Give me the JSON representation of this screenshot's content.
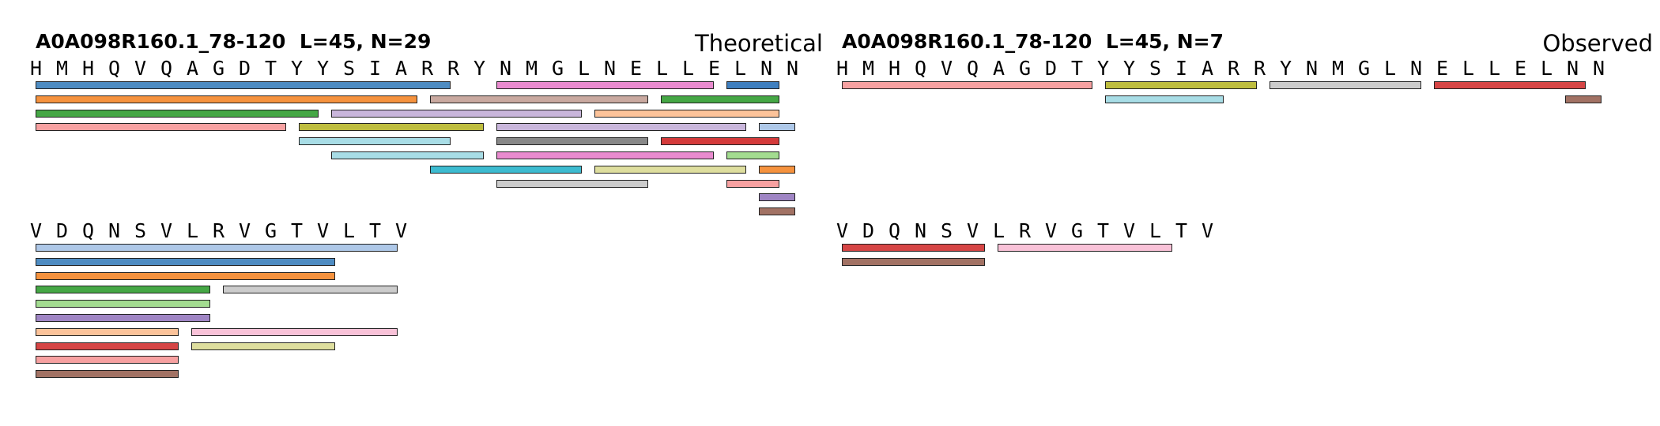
{
  "panels": [
    {
      "id": "theoretical",
      "title": "A0A098R160.1_78-120  L=45, N=29",
      "mode_label": "Theoretical",
      "rows": [
        {
          "residues": [
            "H",
            "M",
            "H",
            "Q",
            "V",
            "Q",
            "A",
            "G",
            "D",
            "T",
            "Y",
            "Y",
            "S",
            "I",
            "A",
            "R",
            "R",
            "Y",
            "N",
            "M",
            "G",
            "L",
            "N",
            "E",
            "L",
            "L",
            "E",
            "L",
            "N",
            "N"
          ],
          "tracks": [
            [
              [
                1,
                13,
                "#4e8cc2"
              ],
              [
                15,
                21,
                "#e98bcf"
              ],
              [
                22,
                23,
                "#3f7fbf"
              ]
            ],
            [
              [
                1,
                12,
                "#f5923e"
              ],
              [
                13,
                19,
                "#c9a9a0"
              ],
              [
                20,
                23,
                "#45a745"
              ]
            ],
            [
              [
                1,
                9,
                "#45a745"
              ],
              [
                10,
                17,
                "#c9b6db"
              ],
              [
                18,
                23,
                "#fcc39a"
              ]
            ],
            [
              [
                1,
                8,
                "#f7a1a1"
              ],
              [
                9,
                14,
                "#bebd3e"
              ],
              [
                15,
                22,
                "#c9b6db"
              ],
              [
                23,
                23,
                "#aec8e8"
              ]
            ],
            [
              [
                9,
                13,
                "#a8dde6"
              ],
              [
                15,
                19,
                "#888888"
              ],
              [
                20,
                23,
                "#d43a3a"
              ]
            ],
            [
              [
                10,
                14,
                "#a8dde6"
              ],
              [
                15,
                21,
                "#e98bcf"
              ],
              [
                22,
                23,
                "#a3dc90"
              ]
            ],
            [
              [
                13,
                17,
                "#3dbbd0"
              ],
              [
                18,
                22,
                "#dede9e"
              ],
              [
                23,
                23,
                "#f5923e"
              ]
            ],
            [
              [
                15,
                19,
                "#cccccc"
              ],
              [
                22,
                23,
                "#f7a1a1"
              ]
            ],
            [
              [
                23,
                23,
                "#9f85c4"
              ]
            ],
            [
              [
                23,
                23,
                "#a27264"
              ]
            ]
          ]
        },
        {
          "residues": [
            "V",
            "D",
            "Q",
            "N",
            "S",
            "V",
            "L",
            "R",
            "V",
            "G",
            "T",
            "V",
            "L",
            "T",
            "V"
          ],
          "tracks": [
            [
              [
                24,
                35,
                "#aec8e8"
              ]
            ],
            [
              [
                24,
                33,
                "#4e8cc2"
              ]
            ],
            [
              [
                24,
                33,
                "#f5923e"
              ]
            ],
            [
              [
                24,
                29,
                "#45a745"
              ],
              [
                30,
                35,
                "#cccccc"
              ]
            ],
            [
              [
                24,
                29,
                "#a3dc90"
              ]
            ],
            [
              [
                24,
                29,
                "#9f85c4"
              ]
            ],
            [
              [
                24,
                28,
                "#fcc39a"
              ],
              [
                29,
                35,
                "#f9c2d8"
              ]
            ],
            [
              [
                24,
                28,
                "#d64545"
              ],
              [
                29,
                33,
                "#dede9e"
              ]
            ],
            [
              [
                24,
                28,
                "#f7a1a1"
              ]
            ],
            [
              [
                24,
                28,
                "#a27264"
              ]
            ]
          ]
        }
      ]
    },
    {
      "id": "observed",
      "title": "A0A098R160.1_78-120  L=45, N=7",
      "mode_label": "Observed",
      "rows": [
        {
          "residues": [
            "H",
            "M",
            "H",
            "Q",
            "V",
            "Q",
            "A",
            "G",
            "D",
            "T",
            "Y",
            "Y",
            "S",
            "I",
            "A",
            "R",
            "R",
            "Y",
            "N",
            "M",
            "G",
            "L",
            "N",
            "E",
            "L",
            "L",
            "E",
            "L",
            "N",
            "N"
          ],
          "tracks": [
            [
              [
                1,
                8,
                "#f7a1a1"
              ],
              [
                9,
                13,
                "#bebd3e"
              ],
              [
                14,
                18,
                "#cccccc"
              ],
              [
                19,
                23,
                "#d64545"
              ]
            ],
            [
              [
                9,
                12,
                "#a8dde6"
              ],
              [
                23,
                23,
                "#a27264"
              ]
            ]
          ]
        },
        {
          "residues": [
            "V",
            "D",
            "Q",
            "N",
            "S",
            "V",
            "L",
            "R",
            "V",
            "G",
            "T",
            "V",
            "L",
            "T",
            "V"
          ],
          "tracks": [
            [
              [
                24,
                28,
                "#d64545"
              ],
              [
                29,
                34,
                "#f9c2d8"
              ]
            ],
            [
              [
                24,
                28,
                "#a27264"
              ]
            ]
          ]
        }
      ]
    }
  ]
}
